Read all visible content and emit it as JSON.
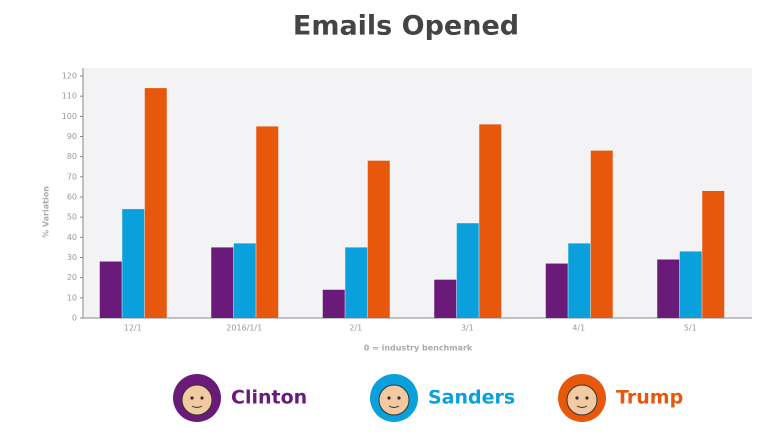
{
  "chart_data": {
    "type": "bar",
    "title": "Emails Opened",
    "y_label": "% Variation",
    "x_label": "0 = industry benchmark",
    "categories": [
      "12/1",
      "2016/1/1",
      "2/1",
      "3/1",
      "4/1",
      "5/1"
    ],
    "series": [
      {
        "name": "Clinton",
        "color": "#6a1b7a",
        "values": [
          28,
          35,
          14,
          19,
          27,
          29
        ]
      },
      {
        "name": "Sanders",
        "color": "#0aa0dc",
        "values": [
          54,
          37,
          35,
          47,
          37,
          33
        ]
      },
      {
        "name": "Trump",
        "color": "#e8580c",
        "values": [
          114,
          95,
          78,
          96,
          83,
          63
        ]
      }
    ],
    "ylim": [
      0,
      120
    ],
    "yticks": [
      0,
      10,
      20,
      30,
      40,
      50,
      60,
      70,
      80,
      90,
      100,
      110,
      120
    ],
    "grid": false
  }
}
